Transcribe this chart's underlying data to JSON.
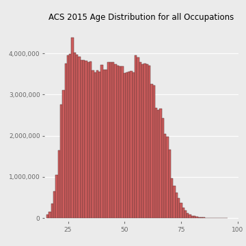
{
  "title": "ACS 2015 Age Distribution for all Occupations",
  "bar_color": "#CD5C5C",
  "edge_color": "#5a3333",
  "background_color": "#EBEBEB",
  "panel_color": "#EBEBEB",
  "grid_color": "#FFFFFF",
  "xlim": [
    14.5,
    100.5
  ],
  "ylim": [
    -80000,
    4700000
  ],
  "yticks": [
    0,
    1000000,
    2000000,
    3000000,
    4000000
  ],
  "xticks": [
    25,
    50,
    75,
    100
  ],
  "ages": [
    16,
    17,
    18,
    19,
    20,
    21,
    22,
    23,
    24,
    25,
    26,
    27,
    28,
    29,
    30,
    31,
    32,
    33,
    34,
    35,
    36,
    37,
    38,
    39,
    40,
    41,
    42,
    43,
    44,
    45,
    46,
    47,
    48,
    49,
    50,
    51,
    52,
    53,
    54,
    55,
    56,
    57,
    58,
    59,
    60,
    61,
    62,
    63,
    64,
    65,
    66,
    67,
    68,
    69,
    70,
    71,
    72,
    73,
    74,
    75,
    76,
    77,
    78,
    79,
    80,
    81,
    82,
    83,
    84,
    85,
    86,
    87,
    88,
    89,
    90,
    91,
    92,
    93,
    94,
    95
  ],
  "counts": [
    80000,
    150000,
    350000,
    650000,
    1050000,
    1650000,
    2750000,
    3100000,
    3750000,
    3960000,
    3980000,
    4380000,
    4020000,
    3970000,
    3920000,
    3840000,
    3840000,
    3820000,
    3780000,
    3810000,
    3580000,
    3540000,
    3580000,
    3550000,
    3720000,
    3600000,
    3600000,
    3790000,
    3780000,
    3780000,
    3730000,
    3710000,
    3680000,
    3680000,
    3520000,
    3540000,
    3550000,
    3570000,
    3530000,
    3950000,
    3900000,
    3780000,
    3740000,
    3760000,
    3740000,
    3710000,
    3260000,
    3230000,
    2680000,
    2630000,
    2660000,
    2420000,
    2050000,
    1970000,
    1660000,
    970000,
    790000,
    620000,
    480000,
    360000,
    260000,
    180000,
    120000,
    80000,
    60000,
    45000,
    33000,
    25000,
    20000,
    15000,
    11000,
    8500,
    6500,
    4500,
    3000,
    1800,
    1200,
    800,
    400,
    180
  ]
}
